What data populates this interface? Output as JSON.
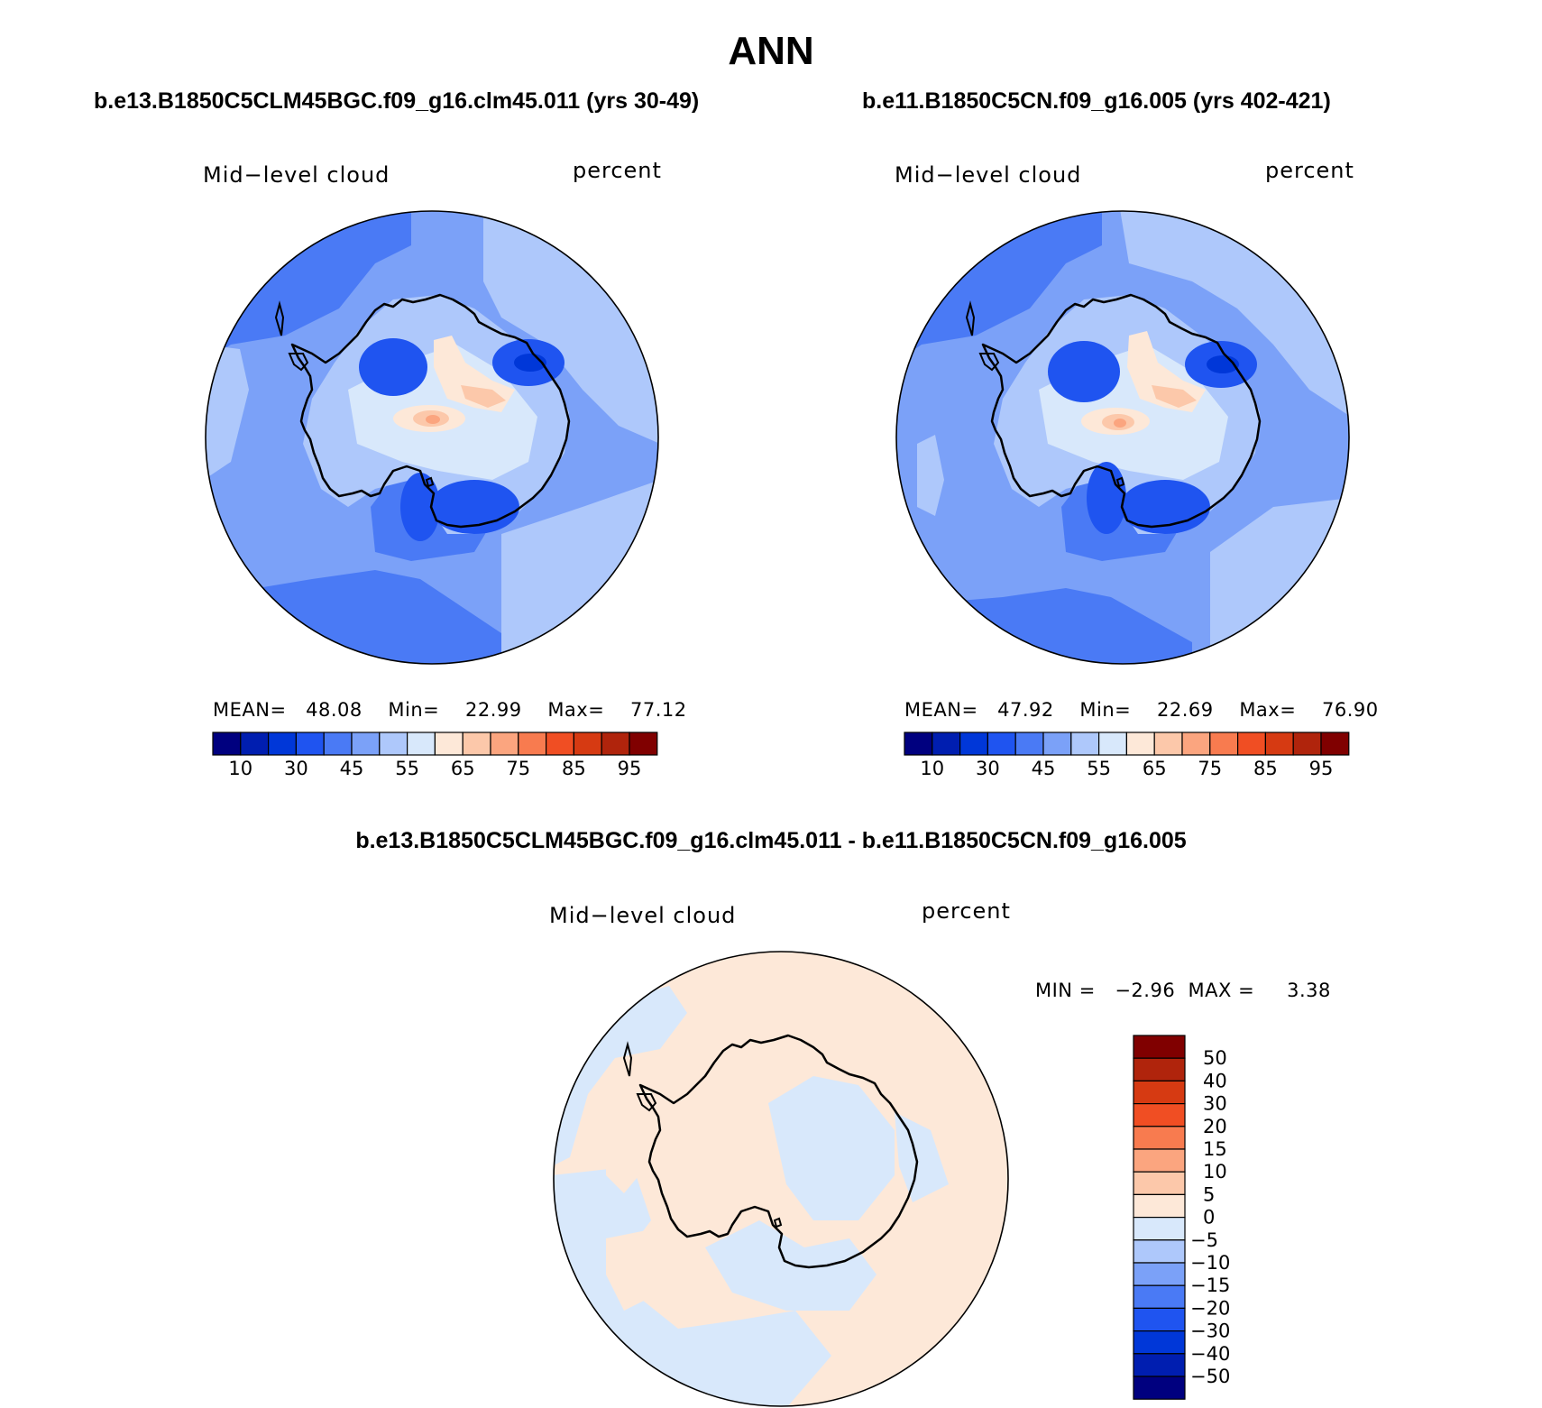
{
  "page": {
    "title": "ANN"
  },
  "panels": [
    {
      "case_title": "b.e13.B1850C5CLM45BGC.f09_g16.clm45.011 (yrs 30-49)",
      "variable": "Mid−level cloud",
      "units": "percent",
      "stats": {
        "mean_label": "MEAN=",
        "mean": "48.08",
        "min_label": "Min=",
        "min": "22.99",
        "max_label": "Max=",
        "max": "77.12"
      }
    },
    {
      "case_title": "b.e11.B1850C5CN.f09_g16.005 (yrs 402-421)",
      "variable": "Mid−level cloud",
      "units": "percent",
      "stats": {
        "mean_label": "MEAN=",
        "mean": "47.92",
        "min_label": "Min=",
        "min": "22.69",
        "max_label": "Max=",
        "max": "76.90"
      }
    }
  ],
  "colorbar_main": {
    "colors": [
      "#00007f",
      "#001eb0",
      "#0037d8",
      "#1f54f0",
      "#4a7af5",
      "#7ba1f8",
      "#aec8fb",
      "#d8e8fb",
      "#fde8d8",
      "#fcc8aa",
      "#fba57f",
      "#f87b4f",
      "#f04e23",
      "#d63a12",
      "#b0240c",
      "#800000"
    ],
    "tick_labels": [
      "10",
      "30",
      "45",
      "55",
      "65",
      "75",
      "85",
      "95"
    ]
  },
  "diff_panel": {
    "title": "b.e13.B1850C5CLM45BGC.f09_g16.clm45.011 - b.e11.B1850C5CN.f09_g16.005",
    "variable": "Mid−level cloud",
    "units": "percent",
    "stats": {
      "min_label": "MIN =",
      "min": "−2.96",
      "max_label": "MAX =",
      "max": "3.38"
    }
  },
  "colorbar_diff": {
    "colors": [
      "#800000",
      "#b0240c",
      "#d63a12",
      "#f04e23",
      "#f87b4f",
      "#fba57f",
      "#fcc8aa",
      "#fde8d8",
      "#d8e8fb",
      "#aec8fb",
      "#7ba1f8",
      "#4a7af5",
      "#1f54f0",
      "#0037d8",
      "#001eb0",
      "#00007f"
    ],
    "tick_labels": [
      "50",
      "40",
      "30",
      "20",
      "15",
      "10",
      "5",
      "0",
      "−5",
      "−10",
      "−15",
      "−20",
      "−30",
      "−40",
      "−50"
    ]
  }
}
